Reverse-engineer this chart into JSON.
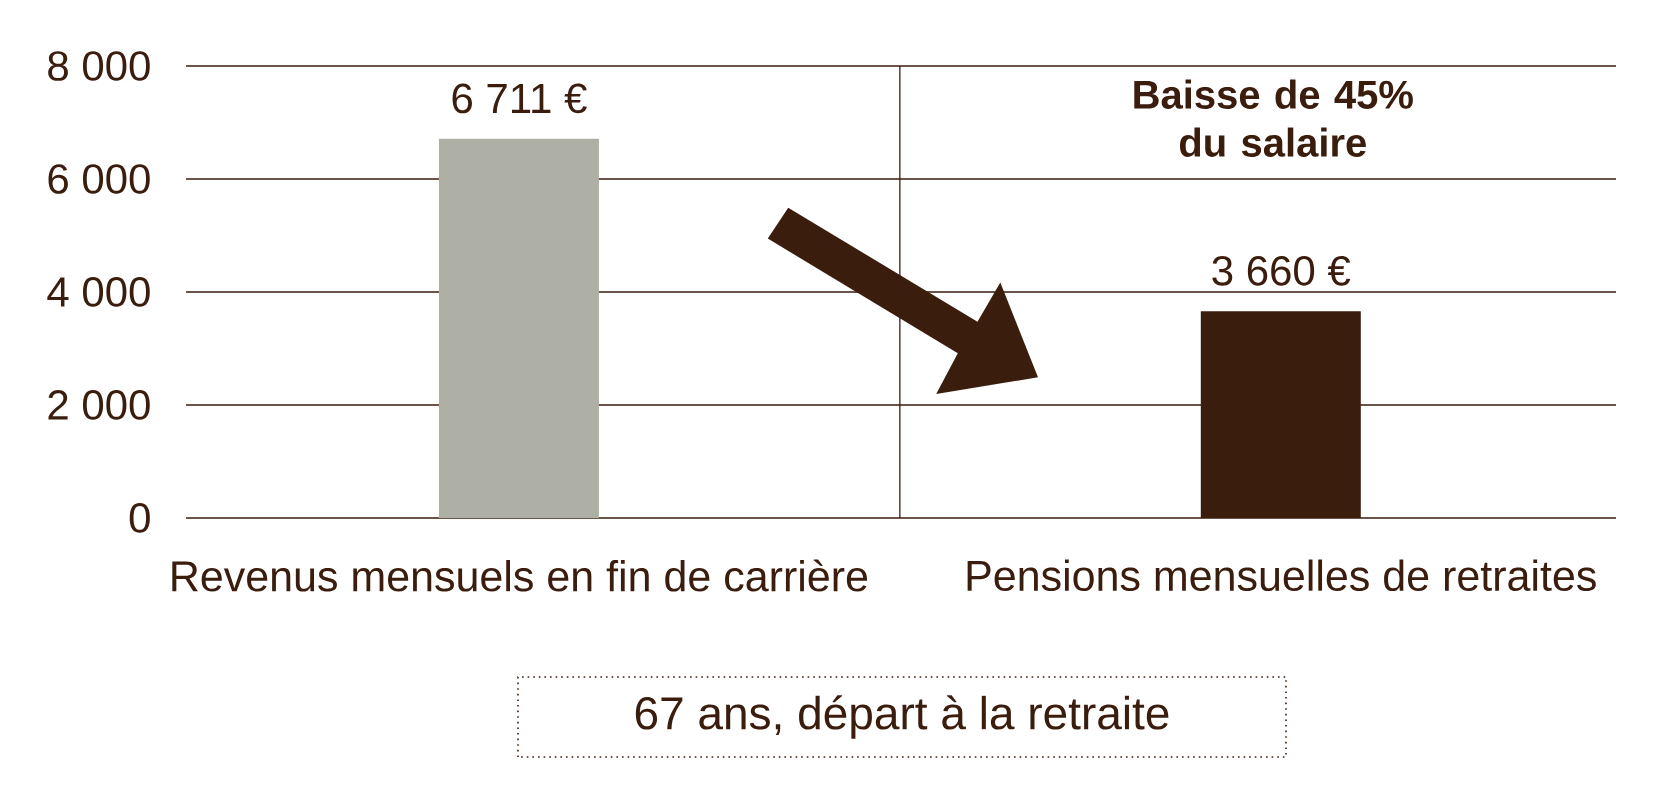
{
  "chart_data": {
    "type": "bar",
    "categories": [
      "Revenus mensuels en fin de carrière",
      "Pensions mensuelles de retraites"
    ],
    "values": [
      6711,
      3660
    ],
    "colors": [
      "#aeb0a6",
      "#3b1d0e"
    ],
    "value_labels": [
      "6 711 €",
      "3 660 €"
    ],
    "ylim": [
      0,
      8000
    ],
    "yticks": [
      0,
      {
        "value": 2000,
        "label": "2 000"
      },
      {
        "value": 4000,
        "label": "4 000"
      },
      {
        "value": 6000,
        "label": "6 000"
      },
      {
        "value": 8000,
        "label": "8 000"
      }
    ],
    "grid": "y",
    "annotations": [
      "Baisse de 45% du salaire",
      "67 ans, départ à la retraite"
    ]
  }
}
